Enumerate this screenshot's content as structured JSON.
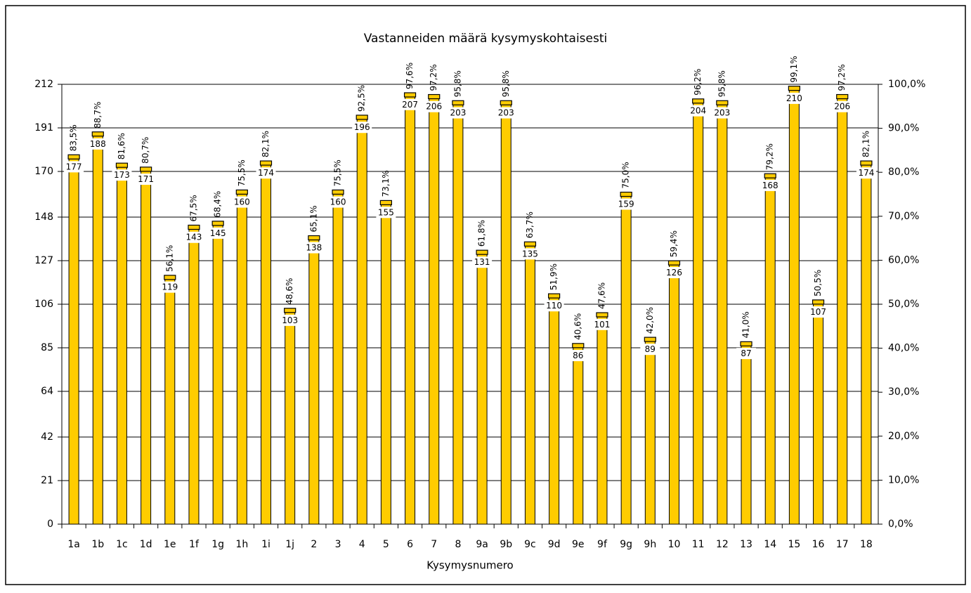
{
  "chart_data": {
    "type": "bar",
    "title": "Vastanneiden määrä kysymyskohtaisesti",
    "x_label": "Kysymysnumero",
    "categories": [
      "1a",
      "1b",
      "1c",
      "1d",
      "1e",
      "1f",
      "1g",
      "1h",
      "1i",
      "1j",
      "2",
      "3",
      "4",
      "5",
      "6",
      "7",
      "8",
      "9a",
      "9b",
      "9c",
      "9d",
      "9e",
      "9f",
      "9g",
      "9h",
      "10",
      "11",
      "12",
      "13",
      "14",
      "15",
      "16",
      "17",
      "18"
    ],
    "series": [
      {
        "color": "#ffcc00",
        "values": [
          177,
          188,
          173,
          171,
          119,
          143,
          145,
          160,
          174,
          103,
          138,
          160,
          196,
          155,
          207,
          206,
          203,
          131,
          203,
          135,
          110,
          86,
          101,
          159,
          89,
          126,
          204,
          203,
          87,
          168,
          210,
          107,
          206,
          174
        ]
      },
      {
        "axis": "y2",
        "color": "#ffcc00",
        "values": [
          83.5,
          88.7,
          81.6,
          80.7,
          56.1,
          67.5,
          68.4,
          75.5,
          82.1,
          48.6,
          65.1,
          75.5,
          92.5,
          73.1,
          97.6,
          97.2,
          95.8,
          61.8,
          95.8,
          63.7,
          51.9,
          40.6,
          47.6,
          75.0,
          42.0,
          59.4,
          96.2,
          95.8,
          41.0,
          79.2,
          99.1,
          50.5,
          97.2,
          82.1
        ],
        "value_labels": [
          "83,5%",
          "88,7%",
          "81,6%",
          "80,7%",
          "56,1%",
          "67,5%",
          "68,4%",
          "75,5%",
          "82,1%",
          "48,6%",
          "65,1%",
          "75,5%",
          "92,5%",
          "73,1%",
          "97,6%",
          "97,2%",
          "95,8%",
          "61,8%",
          "95,8%",
          "63,7%",
          "51,9%",
          "40,6%",
          "47,6%",
          "75,0%",
          "42,0%",
          "59,4%",
          "96,2%",
          "95,8%",
          "41,0%",
          "79,2%",
          "99,1%",
          "50,5%",
          "97,2%",
          "82,1%"
        ]
      }
    ],
    "ylim": [
      0,
      212
    ],
    "yticks": [
      0,
      21,
      42,
      64,
      85,
      106,
      127,
      148,
      170,
      191,
      212
    ],
    "y2lim": [
      0,
      100
    ],
    "y2ticks": [
      {
        "value": 0,
        "label": "0,0%"
      },
      {
        "value": 10,
        "label": "10,0%"
      },
      {
        "value": 20,
        "label": "20,0%"
      },
      {
        "value": 30,
        "label": "30,0%"
      },
      {
        "value": 40,
        "label": "40,0%"
      },
      {
        "value": 50,
        "label": "50,0%"
      },
      {
        "value": 60,
        "label": "60,0%"
      },
      {
        "value": 70,
        "label": "70,0%"
      },
      {
        "value": 80,
        "label": "80,0%"
      },
      {
        "value": 90,
        "label": "90,0%"
      },
      {
        "value": 100,
        "label": "100,0%"
      }
    ],
    "grid": true
  }
}
